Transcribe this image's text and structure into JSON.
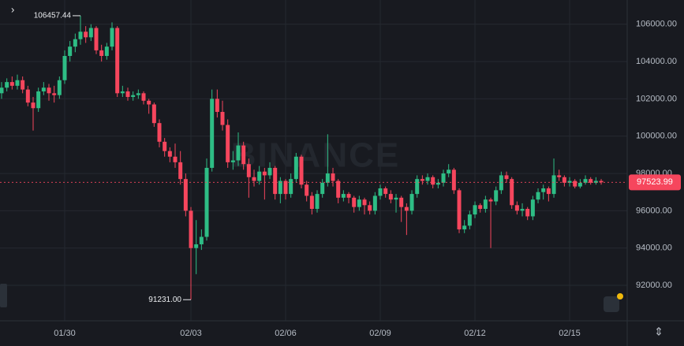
{
  "chart_data": {
    "type": "candlestick",
    "watermark": "BINANCE",
    "up_color": "#2ebd85",
    "down_color": "#f6465d",
    "grid": true,
    "ylim": [
      90100,
      107300
    ],
    "yticks": [
      {
        "value": 92000,
        "label": "92000.00"
      },
      {
        "value": 94000,
        "label": "94000.00"
      },
      {
        "value": 96000,
        "label": "96000.00"
      },
      {
        "value": 98000,
        "label": "98000.00"
      },
      {
        "value": 100000,
        "label": "100000.00"
      },
      {
        "value": 102000,
        "label": "102000.00"
      },
      {
        "value": 104000,
        "label": "104000.00"
      },
      {
        "value": 106000,
        "label": "106000.00"
      }
    ],
    "high_label": "106457.44",
    "low_label": "91231.00",
    "categories": [
      null,
      null,
      null,
      null,
      null,
      null,
      null,
      null,
      null,
      null,
      null,
      null,
      "01/30",
      null,
      null,
      null,
      null,
      null,
      null,
      null,
      null,
      null,
      null,
      null,
      null,
      null,
      null,
      null,
      null,
      null,
      null,
      null,
      null,
      null,
      null,
      null,
      "02/03",
      null,
      null,
      null,
      null,
      null,
      null,
      null,
      null,
      null,
      null,
      null,
      null,
      null,
      null,
      null,
      null,
      null,
      "02/06",
      null,
      null,
      null,
      null,
      null,
      null,
      null,
      null,
      null,
      null,
      null,
      null,
      null,
      null,
      null,
      null,
      null,
      "02/09",
      null,
      null,
      null,
      null,
      null,
      null,
      null,
      null,
      null,
      null,
      null,
      null,
      null,
      null,
      null,
      null,
      null,
      "02/12",
      null,
      null,
      null,
      null,
      null,
      null,
      null,
      null,
      null,
      null,
      null,
      null,
      null,
      null,
      null,
      null,
      null,
      "02/15",
      null,
      null,
      null,
      null,
      null,
      null
    ],
    "candles": [
      [
        102300,
        102900,
        102000,
        102600
      ],
      [
        102600,
        103100,
        102400,
        102900
      ],
      [
        102900,
        103200,
        102500,
        102700
      ],
      [
        102700,
        103300,
        102500,
        103000
      ],
      [
        103000,
        103200,
        102300,
        102500
      ],
      [
        102500,
        102700,
        101600,
        101800
      ],
      [
        101800,
        102100,
        100300,
        101500
      ],
      [
        101500,
        102600,
        101300,
        102400
      ],
      [
        102400,
        102900,
        102200,
        102600
      ],
      [
        102600,
        102800,
        101900,
        102300
      ],
      [
        102300,
        102700,
        101800,
        102200
      ],
      [
        102200,
        103200,
        102000,
        103000
      ],
      [
        103000,
        104600,
        102800,
        104300
      ],
      [
        104300,
        105100,
        104000,
        104800
      ],
      [
        104800,
        105500,
        104500,
        105200
      ],
      [
        105200,
        106457.44,
        104900,
        105600
      ],
      [
        105600,
        105900,
        105000,
        105300
      ],
      [
        105300,
        106000,
        105100,
        105800
      ],
      [
        105800,
        105900,
        104400,
        104600
      ],
      [
        104600,
        104900,
        104000,
        104300
      ],
      [
        104300,
        105000,
        104100,
        104800
      ],
      [
        104800,
        106100,
        104600,
        105800
      ],
      [
        105800,
        105900,
        102100,
        102300
      ],
      [
        102300,
        102700,
        102100,
        102400
      ],
      [
        102400,
        102600,
        101900,
        102100
      ],
      [
        102100,
        102400,
        101900,
        102200
      ],
      [
        102200,
        102500,
        102000,
        102300
      ],
      [
        102300,
        102400,
        101700,
        101900
      ],
      [
        101900,
        102000,
        101200,
        101700
      ],
      [
        101700,
        101800,
        100500,
        100700
      ],
      [
        100700,
        100900,
        99400,
        99700
      ],
      [
        99700,
        99900,
        98900,
        99200
      ],
      [
        99200,
        99400,
        98600,
        98900
      ],
      [
        98900,
        99600,
        98300,
        98600
      ],
      [
        98600,
        99200,
        97400,
        97700
      ],
      [
        97700,
        98000,
        95700,
        96000
      ],
      [
        96000,
        96200,
        91231,
        94000
      ],
      [
        94000,
        95500,
        92600,
        94200
      ],
      [
        94200,
        95000,
        93900,
        94600
      ],
      [
        94600,
        98800,
        94400,
        98300
      ],
      [
        98300,
        102500,
        98100,
        102000
      ],
      [
        102000,
        102500,
        101000,
        101300
      ],
      [
        101300,
        101900,
        100300,
        100600
      ],
      [
        100600,
        100900,
        98300,
        98600
      ],
      [
        98600,
        99200,
        98200,
        98700
      ],
      [
        98700,
        100200,
        98400,
        99500
      ],
      [
        99500,
        99700,
        98200,
        98500
      ],
      [
        98500,
        98800,
        96700,
        97800
      ],
      [
        97800,
        98200,
        97300,
        97600
      ],
      [
        97600,
        98400,
        97400,
        98100
      ],
      [
        98100,
        98300,
        96600,
        97900
      ],
      [
        97900,
        98600,
        97700,
        98300
      ],
      [
        98300,
        98400,
        96600,
        96900
      ],
      [
        96900,
        97800,
        96400,
        97600
      ],
      [
        97600,
        97700,
        96600,
        96900
      ],
      [
        96900,
        98000,
        96700,
        97700
      ],
      [
        97700,
        99100,
        97500,
        98900
      ],
      [
        98900,
        99000,
        97200,
        97400
      ],
      [
        97400,
        97600,
        96500,
        96800
      ],
      [
        96800,
        97000,
        95800,
        96100
      ],
      [
        96100,
        97100,
        95900,
        96900
      ],
      [
        96900,
        97700,
        96700,
        97500
      ],
      [
        97500,
        100100,
        97300,
        98000
      ],
      [
        98000,
        98300,
        97300,
        97600
      ],
      [
        97600,
        97700,
        96400,
        96700
      ],
      [
        96700,
        97100,
        96500,
        96900
      ],
      [
        96900,
        97000,
        96400,
        96700
      ],
      [
        96700,
        96800,
        95900,
        96200
      ],
      [
        96200,
        96800,
        96000,
        96600
      ],
      [
        96600,
        96700,
        95800,
        96300
      ],
      [
        96300,
        96500,
        95800,
        96000
      ],
      [
        96000,
        97000,
        95800,
        96800
      ],
      [
        96800,
        97400,
        96600,
        97200
      ],
      [
        97200,
        97300,
        96700,
        96900
      ],
      [
        96900,
        97100,
        96400,
        96600
      ],
      [
        96600,
        96900,
        95900,
        96700
      ],
      [
        96700,
        96800,
        95400,
        96200
      ],
      [
        96200,
        96400,
        94700,
        96000
      ],
      [
        96000,
        97100,
        95800,
        96900
      ],
      [
        96900,
        97900,
        96700,
        97700
      ],
      [
        97700,
        97900,
        97400,
        97600
      ],
      [
        97600,
        98000,
        97400,
        97800
      ],
      [
        97800,
        97900,
        97200,
        97400
      ],
      [
        97400,
        97700,
        97200,
        97500
      ],
      [
        97500,
        98200,
        97300,
        98000
      ],
      [
        98000,
        98500,
        97800,
        98200
      ],
      [
        98200,
        98300,
        96900,
        97100
      ],
      [
        97100,
        97200,
        94800,
        95000
      ],
      [
        95000,
        95500,
        94800,
        95200
      ],
      [
        95200,
        96000,
        95000,
        95800
      ],
      [
        95800,
        96500,
        95600,
        96300
      ],
      [
        96300,
        96400,
        95900,
        96100
      ],
      [
        96100,
        96800,
        95900,
        96600
      ],
      [
        96600,
        96700,
        94000,
        96500
      ],
      [
        96500,
        97300,
        96300,
        97100
      ],
      [
        97100,
        98100,
        96900,
        97900
      ],
      [
        97900,
        98100,
        97500,
        97700
      ],
      [
        97700,
        97800,
        96100,
        96300
      ],
      [
        96300,
        96500,
        95800,
        96000
      ],
      [
        96000,
        96400,
        95700,
        96100
      ],
      [
        96100,
        96200,
        95500,
        95700
      ],
      [
        95700,
        96800,
        95500,
        96600
      ],
      [
        96600,
        97200,
        96400,
        97000
      ],
      [
        97000,
        97400,
        96600,
        97200
      ],
      [
        97200,
        97300,
        96500,
        96900
      ],
      [
        96900,
        98800,
        96700,
        97900
      ],
      [
        97900,
        98200,
        97600,
        97800
      ],
      [
        97800,
        97900,
        97300,
        97500
      ],
      [
        97500,
        97800,
        97300,
        97600
      ],
      [
        97600,
        97700,
        97200,
        97300
      ],
      [
        97300,
        97700,
        97200,
        97500
      ],
      [
        97500,
        97900,
        97400,
        97700
      ],
      [
        97700,
        97800,
        97400,
        97500
      ],
      [
        97500,
        97800,
        97400,
        97600
      ],
      [
        97600,
        97700,
        97400,
        97523.99
      ]
    ]
  }
}
